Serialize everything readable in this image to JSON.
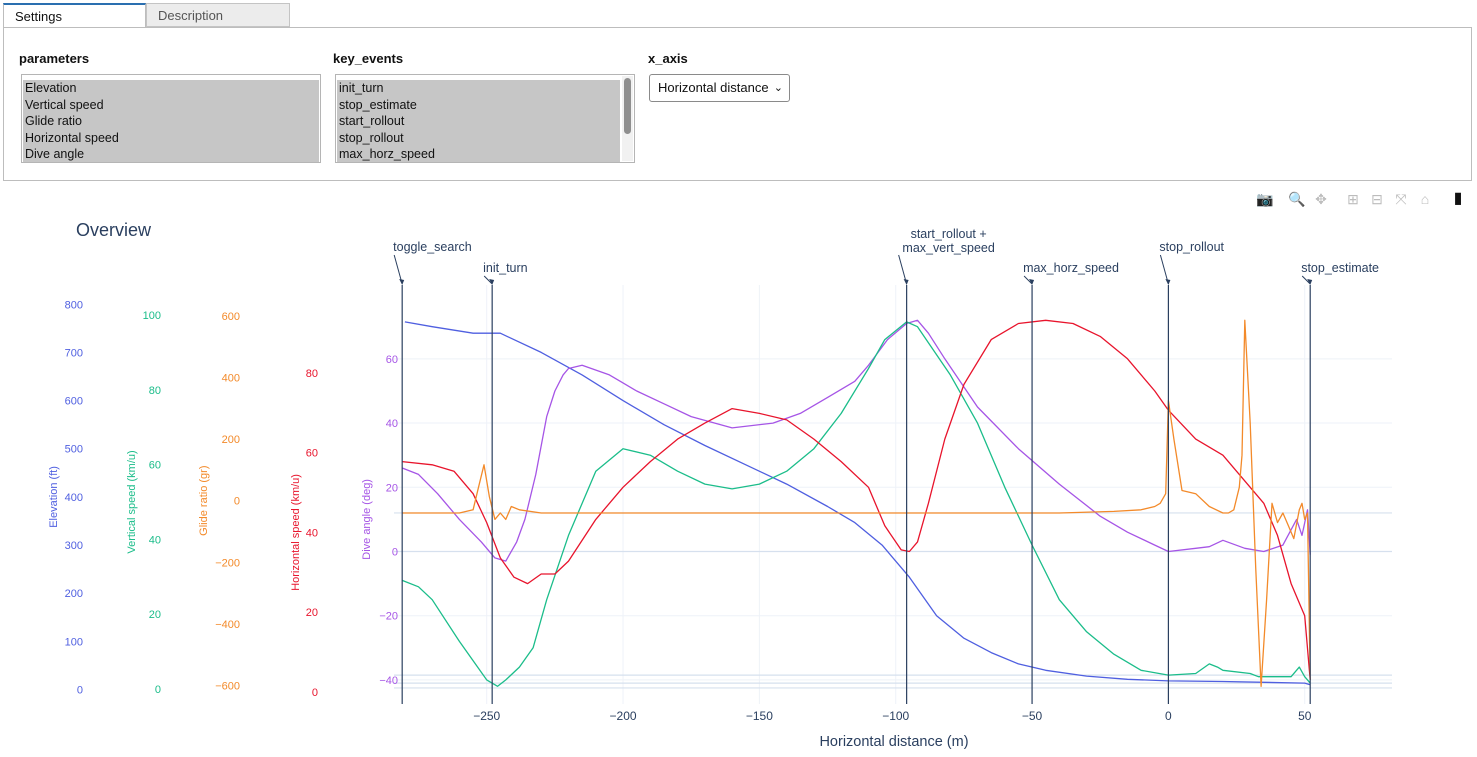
{
  "tabs": [
    {
      "label": "Settings",
      "active": true
    },
    {
      "label": "Description",
      "active": false
    }
  ],
  "groups": {
    "parameters": {
      "label": "parameters",
      "options": [
        "Elevation",
        "Vertical speed",
        "Glide ratio",
        "Horizontal speed",
        "Dive angle"
      ]
    },
    "key_events": {
      "label": "key_events",
      "options": [
        "init_turn",
        "stop_estimate",
        "start_rollout",
        "stop_rollout",
        "max_horz_speed"
      ]
    },
    "x_axis": {
      "label": "x_axis",
      "selected": "Horizontal distance"
    }
  },
  "modebar": [
    {
      "name": "camera-icon",
      "glyph": "📷"
    },
    {
      "name": "zoom-icon",
      "glyph": "🔍"
    },
    {
      "name": "pan-icon",
      "glyph": "✥"
    },
    {
      "name": "zoom-in-icon",
      "glyph": "⊞"
    },
    {
      "name": "zoom-out-icon",
      "glyph": "⊟"
    },
    {
      "name": "autoscale-icon",
      "glyph": "⤧"
    },
    {
      "name": "home-icon",
      "glyph": "⌂"
    },
    {
      "name": "plotly-logo-icon",
      "glyph": "▮"
    }
  ],
  "chart_data": {
    "type": "line",
    "title": "Overview",
    "xlabel": "Horizontal distance (m)",
    "xlim": [
      -284,
      82
    ],
    "xticks": [
      -250,
      -200,
      -150,
      -100,
      -50,
      0,
      50
    ],
    "colors": {
      "elevation": "#4f5fe0",
      "vertical": "#1bbd8a",
      "glide": "#f38a2a",
      "horizontal": "#e8142c",
      "dive": "#a655e6"
    },
    "axes": [
      {
        "key": "elevation",
        "label": "Elevation (ft)",
        "color": "#4f5fe0",
        "range": [
          -30,
          840
        ],
        "ticks": [
          0,
          100,
          200,
          300,
          400,
          500,
          600,
          700,
          800
        ]
      },
      {
        "key": "vertical",
        "label": "Vertical speed (km/u)",
        "color": "#1bbd8a",
        "range": [
          -4,
          108
        ],
        "ticks": [
          0,
          20,
          40,
          60,
          80,
          100
        ]
      },
      {
        "key": "glide",
        "label": "Glide ratio (gr)",
        "color": "#f38a2a",
        "range": [
          -660,
          700
        ],
        "ticks": [
          -600,
          -400,
          -200,
          0,
          200,
          400,
          600
        ]
      },
      {
        "key": "horizontal",
        "label": "Horizontal speed (km/u)",
        "color": "#e8142c",
        "range": [
          -3,
          102
        ],
        "ticks": [
          0,
          20,
          40,
          60,
          80
        ]
      },
      {
        "key": "dive",
        "label": "Dive angle (deg)",
        "color": "#a655e6",
        "range": [
          -47.5,
          83
        ],
        "ticks": [
          -40,
          -20,
          0,
          20,
          40,
          60
        ]
      }
    ],
    "series": [
      {
        "name": "Elevation",
        "axis": "dive",
        "x": [
          -280,
          -270,
          -255,
          -245,
          -230,
          -215,
          -200,
          -185,
          -170,
          -155,
          -140,
          -125,
          -115,
          -105,
          -95,
          -85,
          -75,
          -65,
          -55,
          -45,
          -30,
          -15,
          0,
          20,
          50,
          52
        ],
        "y": [
          71.5,
          70,
          68,
          68,
          62,
          55,
          47,
          39.5,
          33,
          27,
          21,
          14,
          9,
          2,
          -8,
          -20,
          -27,
          -31.5,
          -35,
          -37,
          -38.8,
          -39.8,
          -40.3,
          -40.5,
          -41,
          -41.5
        ]
      },
      {
        "name": "Dive angle",
        "axis": "dive",
        "x": [
          -281,
          -275,
          -268,
          -260,
          -252,
          -247,
          -243,
          -239,
          -236,
          -232,
          -228,
          -225,
          -222,
          -220,
          -215,
          -205,
          -195,
          -185,
          -175,
          -160,
          -145,
          -135,
          -125,
          -115,
          -110,
          -103,
          -96,
          -92,
          -88,
          -82,
          -70,
          -55,
          -40,
          -25,
          -15,
          -5,
          0,
          10,
          15,
          20,
          28,
          35,
          42,
          47,
          49,
          51,
          52
        ],
        "y": [
          26,
          24,
          18,
          10,
          3,
          -2,
          -3,
          3,
          10,
          24,
          42,
          50,
          55,
          57,
          58,
          55,
          50,
          46,
          42,
          38.5,
          40,
          43,
          48,
          53,
          58,
          66,
          71,
          72,
          68,
          60,
          45,
          32,
          21,
          11,
          6,
          2,
          0,
          1,
          1.5,
          3.5,
          1,
          0,
          2,
          10,
          5,
          13,
          -1
        ]
      },
      {
        "name": "Vertical speed",
        "axis": "dive",
        "x": [
          -281,
          -275,
          -270,
          -260,
          -250,
          -246,
          -243,
          -238,
          -233,
          -228,
          -220,
          -210,
          -200,
          -190,
          -180,
          -170,
          -160,
          -150,
          -140,
          -130,
          -120,
          -110,
          -104,
          -96,
          -92,
          -88,
          -80,
          -70,
          -60,
          -50,
          -40,
          -30,
          -20,
          -10,
          0,
          10,
          15,
          18,
          20,
          30,
          33,
          45,
          48,
          50,
          52
        ],
        "y": [
          -9,
          -11,
          -15,
          -28,
          -40,
          -42,
          -40,
          -36,
          -30,
          -15,
          5,
          25,
          32,
          30,
          25,
          21,
          19.5,
          21,
          25,
          32,
          43,
          57,
          66,
          71.5,
          70,
          65,
          55,
          40,
          20,
          2,
          -15,
          -25,
          -32,
          -37,
          -38.5,
          -38,
          -35,
          -36,
          -37,
          -38,
          -39,
          -39,
          -36,
          -39,
          -41
        ]
      },
      {
        "name": "Horizontal speed",
        "axis": "dive",
        "x": [
          -281,
          -270,
          -262,
          -255,
          -250,
          -245,
          -240,
          -235,
          -230,
          -225,
          -220,
          -210,
          -200,
          -190,
          -180,
          -170,
          -160,
          -150,
          -140,
          -130,
          -120,
          -110,
          -104,
          -98,
          -95,
          -92,
          -88,
          -82,
          -75,
          -65,
          -55,
          -45,
          -35,
          -25,
          -15,
          -5,
          0,
          10,
          20,
          30,
          35,
          40,
          45,
          50,
          52
        ],
        "y": [
          28,
          27,
          25,
          18,
          9,
          -2,
          -8,
          -10,
          -7,
          -7,
          -3,
          10,
          20,
          28,
          35,
          40,
          44.5,
          43,
          41,
          35,
          28,
          20,
          8,
          0.5,
          0,
          3,
          15,
          35,
          52,
          66,
          71,
          72,
          71,
          67,
          60,
          50,
          44,
          35,
          30,
          20,
          15,
          5,
          -10,
          -20,
          -40
        ]
      },
      {
        "name": "Glide ratio",
        "axis": "dive",
        "x": [
          -281,
          -270,
          -260,
          -255,
          -253,
          -251,
          -249,
          -247,
          -245,
          -243,
          -241,
          -238,
          -230,
          -220,
          -200,
          -180,
          -150,
          -120,
          -100,
          -80,
          -60,
          -40,
          -20,
          -10,
          -5,
          -3,
          -1,
          0,
          2,
          5,
          10,
          15,
          20,
          22,
          24,
          26,
          27,
          28,
          30,
          32,
          34,
          36,
          38,
          40,
          42,
          44,
          46,
          48,
          49,
          50,
          51,
          52
        ],
        "y": [
          12,
          12,
          12,
          13,
          20,
          27,
          17,
          10,
          12,
          10,
          14,
          13,
          12,
          12,
          12,
          12,
          12,
          12,
          12,
          12,
          12,
          12,
          12.5,
          13,
          14,
          15,
          18,
          47,
          35,
          19,
          18,
          14,
          12,
          12,
          13,
          20,
          30,
          72,
          40,
          -5,
          -42,
          -15,
          15,
          9,
          12,
          8,
          4,
          13,
          15,
          10,
          12,
          -40
        ]
      }
    ],
    "y_ticks_right": [
      -40,
      -20,
      0,
      20,
      40,
      60
    ],
    "events": [
      {
        "label": "toggle_search",
        "x": -281
      },
      {
        "label": "init_turn",
        "x": -248
      },
      {
        "label": "start_rollout +",
        "label2": "max_vert_speed",
        "x": -96
      },
      {
        "label": "max_horz_speed",
        "x": -50
      },
      {
        "label": "stop_rollout",
        "x": 0
      },
      {
        "label": "stop_estimate",
        "x": 52
      }
    ]
  }
}
